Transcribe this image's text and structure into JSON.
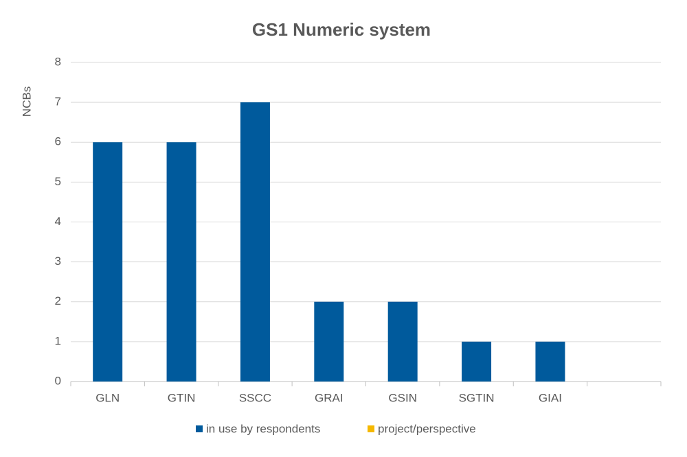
{
  "chart_data": {
    "type": "bar",
    "title": "GS1 Numeric system",
    "y_label": "NCBs",
    "categories": [
      "GLN",
      "GTIN",
      "SSCC",
      "GRAI",
      "GSIN",
      "SGTIN",
      "GIAI",
      null
    ],
    "series": [
      {
        "name": "in use by respondents",
        "color": "#005a9c",
        "values": [
          6,
          6,
          7,
          2,
          2,
          1,
          1,
          null
        ]
      },
      {
        "name": "project/perspective",
        "color": "#f5b800",
        "values": [
          null,
          null,
          null,
          null,
          null,
          null,
          null,
          null
        ]
      }
    ],
    "ylim": [
      0,
      8
    ],
    "yticks": [
      0,
      1,
      2,
      3,
      4,
      5,
      6,
      7,
      8
    ],
    "grid": true,
    "legend": "bottom"
  }
}
